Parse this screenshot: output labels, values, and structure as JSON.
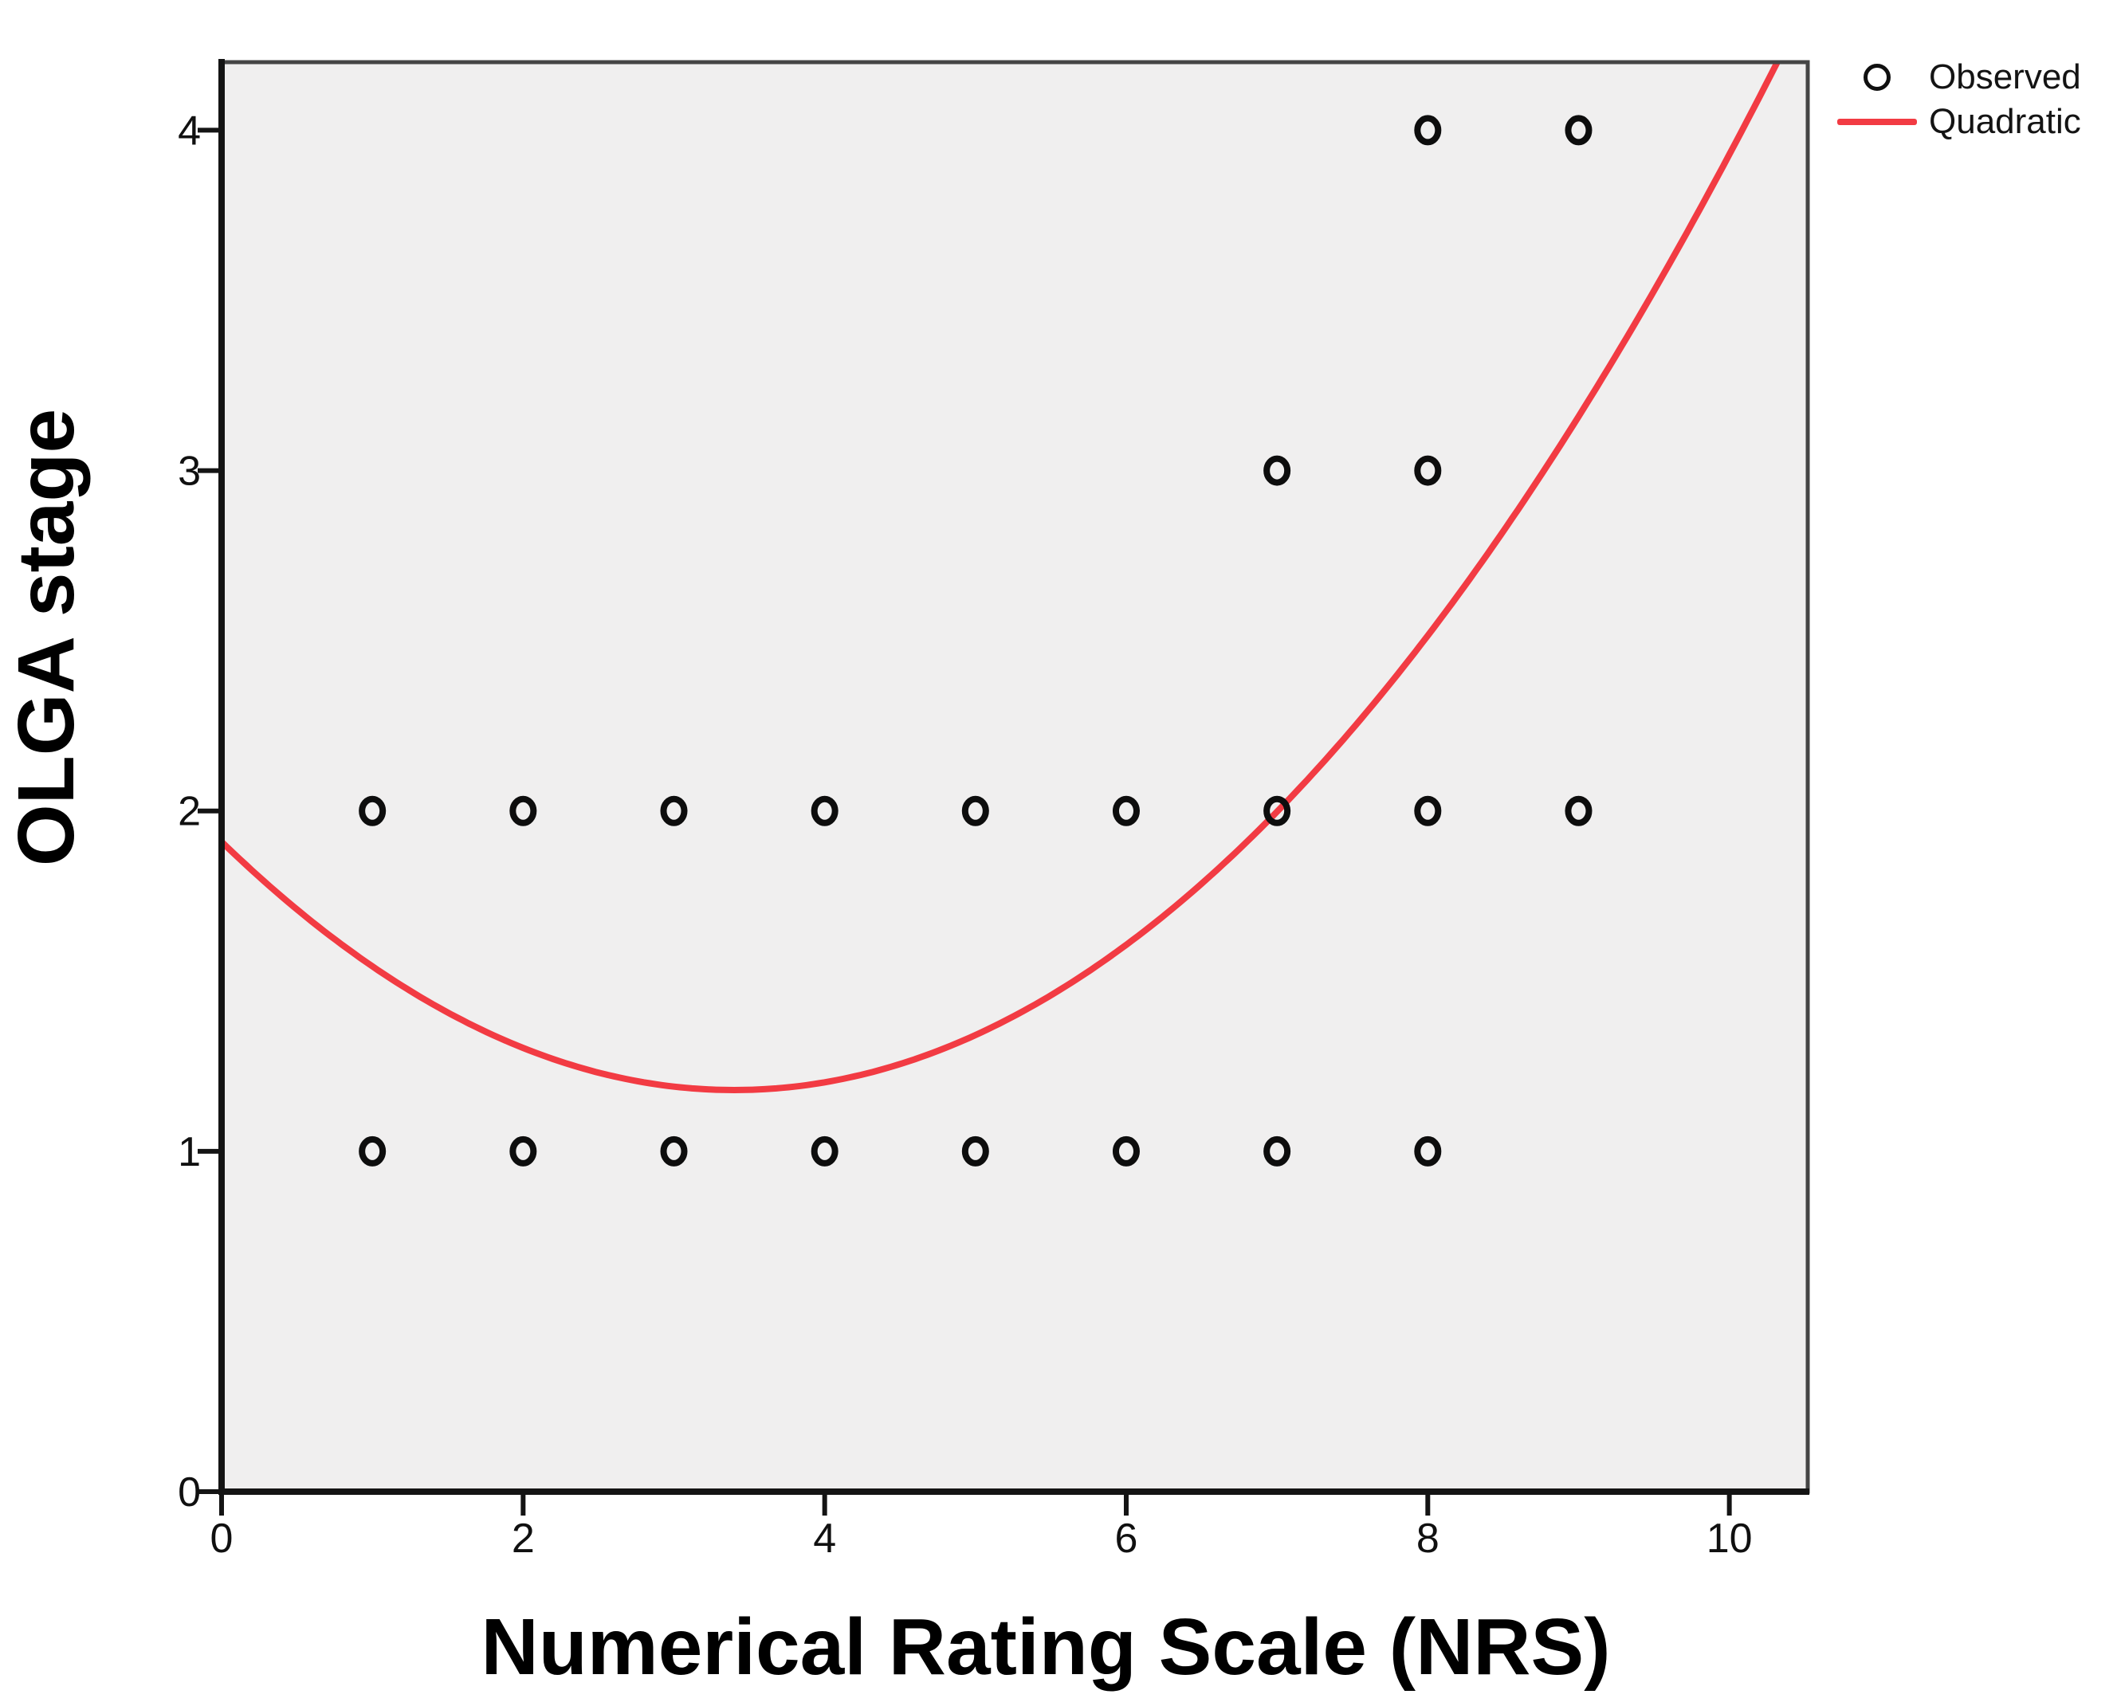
{
  "figure": {
    "xlabel": "Numerical Rating Scale (NRS)",
    "ylabel": "OLGA stage"
  },
  "legend": {
    "observed_label": "Observed",
    "quadratic_label": "Quadratic"
  },
  "colors": {
    "plot_background": "#f0efef",
    "frame": "#454545",
    "axis": "#141414",
    "marker": "#0d0d0d",
    "quadratic_line": "#f23b43",
    "tick_label": "#101010"
  },
  "chart_data": {
    "type": "scatter",
    "title": "",
    "xlabel": "Numerical Rating Scale (NRS)",
    "ylabel": "OLGA stage",
    "xlim": [
      0,
      10.52
    ],
    "ylim": [
      0,
      4.2
    ],
    "x_ticks": [
      0,
      2,
      4,
      6,
      8,
      10
    ],
    "y_ticks": [
      0,
      1,
      2,
      3,
      4
    ],
    "grid": false,
    "legend_position": "outside-top-right",
    "series": [
      {
        "name": "Observed",
        "type": "scatter",
        "marker": "open-circle",
        "color": "#0d0d0d",
        "points": [
          [
            1,
            1
          ],
          [
            2,
            1
          ],
          [
            3,
            1
          ],
          [
            4,
            1
          ],
          [
            5,
            1
          ],
          [
            6,
            1
          ],
          [
            7,
            1
          ],
          [
            8,
            1
          ],
          [
            1,
            2
          ],
          [
            2,
            2
          ],
          [
            3,
            2
          ],
          [
            4,
            2
          ],
          [
            5,
            2
          ],
          [
            6,
            2
          ],
          [
            7,
            2
          ],
          [
            8,
            2
          ],
          [
            9,
            2
          ],
          [
            7,
            3
          ],
          [
            8,
            3
          ],
          [
            8,
            4
          ],
          [
            9,
            4
          ]
        ]
      },
      {
        "name": "Quadratic",
        "type": "line",
        "fit": "quadratic",
        "color": "#f23b43",
        "equation": "y = 0.0631*(x - 3.4)^2 + 1.18",
        "a": 0.0631,
        "h": 3.4,
        "k": 1.18,
        "x_range": [
          0,
          10.52
        ]
      }
    ]
  }
}
